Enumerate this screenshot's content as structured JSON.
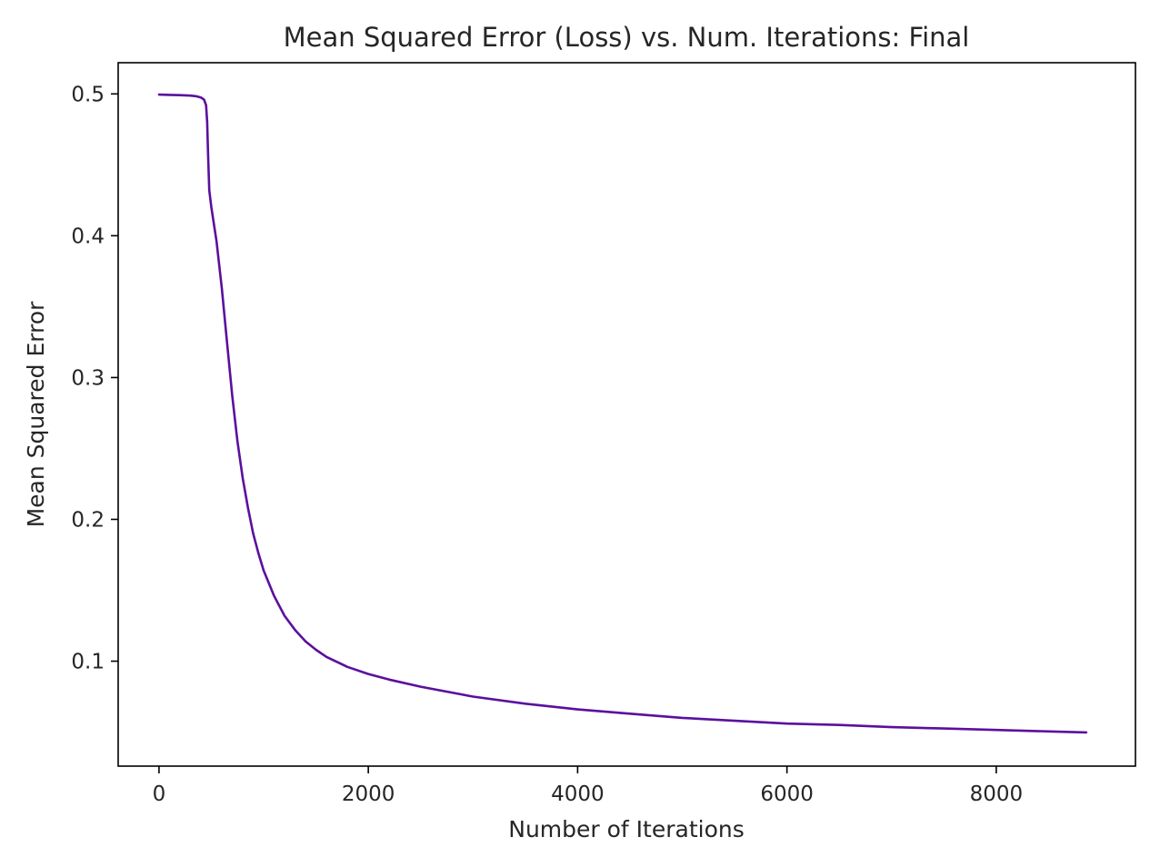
{
  "chart_data": {
    "type": "line",
    "title": "Mean Squared Error (Loss) vs. Num. Iterations: Final",
    "xlabel": "Number of Iterations",
    "ylabel": "Mean Squared Error",
    "xlim": [
      -390,
      9330
    ],
    "ylim": [
      0.026,
      0.522
    ],
    "xticks": [
      0,
      2000,
      4000,
      6000,
      8000
    ],
    "xtick_labels": [
      "0",
      "2000",
      "4000",
      "6000",
      "8000"
    ],
    "yticks": [
      0.1,
      0.2,
      0.3,
      0.4,
      0.5
    ],
    "ytick_labels": [
      "0.1",
      "0.2",
      "0.3",
      "0.4",
      "0.5"
    ],
    "grid": false,
    "legend": "none",
    "series": [
      {
        "color": "#5b0f9e",
        "x": [
          0,
          100,
          200,
          300,
          350,
          400,
          430,
          450,
          460,
          470,
          480,
          500,
          550,
          600,
          650,
          700,
          750,
          800,
          850,
          900,
          950,
          1000,
          1100,
          1200,
          1300,
          1400,
          1500,
          1600,
          1800,
          2000,
          2200,
          2500,
          3000,
          3500,
          4000,
          4500,
          5000,
          5500,
          6000,
          6500,
          7000,
          7500,
          8000,
          8500,
          8860
        ],
        "y": [
          0.4995,
          0.4993,
          0.4991,
          0.4988,
          0.4984,
          0.4975,
          0.496,
          0.492,
          0.48,
          0.455,
          0.432,
          0.42,
          0.396,
          0.363,
          0.325,
          0.287,
          0.255,
          0.229,
          0.208,
          0.19,
          0.176,
          0.164,
          0.146,
          0.132,
          0.122,
          0.114,
          0.108,
          0.103,
          0.096,
          0.091,
          0.087,
          0.082,
          0.075,
          0.07,
          0.066,
          0.063,
          0.06,
          0.058,
          0.056,
          0.055,
          0.0535,
          0.0525,
          0.0515,
          0.0505,
          0.0498
        ]
      }
    ]
  }
}
